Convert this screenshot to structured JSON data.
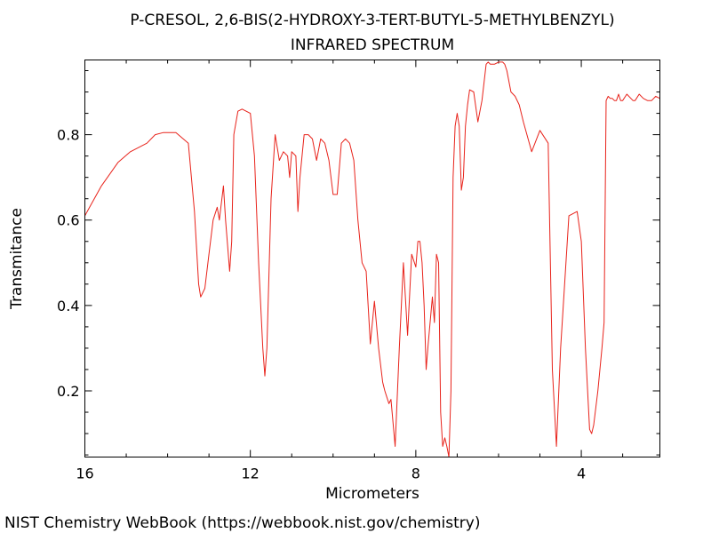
{
  "chart_data": {
    "type": "line",
    "title": "P-CRESOL, 2,6-BIS(2-HYDROXY-3-TERT-BUTYL-5-METHYLBENZYL)",
    "subtitle": "INFRARED SPECTRUM",
    "xlabel": "Micrometers",
    "ylabel": "Transmitance",
    "xlim": [
      16,
      2.1
    ],
    "x_reversed": true,
    "ylim": [
      0.045,
      0.975
    ],
    "xticks": [
      16,
      12,
      8,
      4
    ],
    "xtick_labels": [
      "16",
      "12",
      "8",
      "4"
    ],
    "yticks": [
      0.2,
      0.4,
      0.6,
      0.8
    ],
    "ytick_labels": [
      "0.2",
      "0.4",
      "0.6",
      "0.8"
    ],
    "grid": false,
    "line_color": "#e8231b",
    "series": [
      {
        "x": [
          16.0,
          15.6,
          15.2,
          14.9,
          14.5,
          14.3,
          14.1,
          13.8,
          13.5,
          13.35,
          13.25,
          13.2,
          13.1,
          13.0,
          12.9,
          12.8,
          12.75,
          12.65,
          12.6,
          12.5,
          12.45,
          12.4,
          12.3,
          12.2,
          12.0,
          11.9,
          11.8,
          11.7,
          11.65,
          11.6,
          11.5,
          11.4,
          11.3,
          11.2,
          11.1,
          11.05,
          11.0,
          10.9,
          10.85,
          10.8,
          10.7,
          10.6,
          10.5,
          10.4,
          10.3,
          10.2,
          10.1,
          10.0,
          9.9,
          9.8,
          9.7,
          9.6,
          9.5,
          9.4,
          9.3,
          9.2,
          9.1,
          9.0,
          8.9,
          8.8,
          8.75,
          8.7,
          8.65,
          8.6,
          8.5,
          8.4,
          8.3,
          8.2,
          8.1,
          8.0,
          7.95,
          7.9,
          7.85,
          7.8,
          7.75,
          7.7,
          7.6,
          7.55,
          7.5,
          7.45,
          7.4,
          7.35,
          7.3,
          7.25,
          7.2,
          7.15,
          7.1,
          7.05,
          7.0,
          6.95,
          6.9,
          6.85,
          6.8,
          6.75,
          6.7,
          6.6,
          6.5,
          6.4,
          6.3,
          6.25,
          6.2,
          6.1,
          6.0,
          5.9,
          5.85,
          5.8,
          5.7,
          5.6,
          5.5,
          5.4,
          5.2,
          5.0,
          4.8,
          4.7,
          4.6,
          4.5,
          4.3,
          4.1,
          4.0,
          3.9,
          3.8,
          3.75,
          3.7,
          3.6,
          3.5,
          3.45,
          3.4,
          3.35,
          3.3,
          3.25,
          3.2,
          3.15,
          3.1,
          3.05,
          3.0,
          2.9,
          2.8,
          2.75,
          2.7,
          2.6,
          2.5,
          2.4,
          2.3,
          2.2,
          2.1
        ],
        "y": [
          0.61,
          0.68,
          0.735,
          0.76,
          0.78,
          0.8,
          0.805,
          0.805,
          0.78,
          0.62,
          0.45,
          0.42,
          0.44,
          0.52,
          0.6,
          0.63,
          0.6,
          0.68,
          0.6,
          0.48,
          0.55,
          0.8,
          0.855,
          0.86,
          0.85,
          0.75,
          0.5,
          0.3,
          0.235,
          0.3,
          0.65,
          0.8,
          0.74,
          0.76,
          0.75,
          0.7,
          0.76,
          0.75,
          0.62,
          0.7,
          0.8,
          0.8,
          0.79,
          0.74,
          0.79,
          0.78,
          0.74,
          0.66,
          0.66,
          0.78,
          0.79,
          0.78,
          0.74,
          0.6,
          0.5,
          0.48,
          0.31,
          0.41,
          0.3,
          0.22,
          0.2,
          0.185,
          0.17,
          0.18,
          0.07,
          0.3,
          0.5,
          0.33,
          0.52,
          0.49,
          0.55,
          0.55,
          0.5,
          0.4,
          0.25,
          0.31,
          0.42,
          0.36,
          0.52,
          0.5,
          0.15,
          0.07,
          0.09,
          0.07,
          0.045,
          0.2,
          0.7,
          0.82,
          0.85,
          0.82,
          0.67,
          0.7,
          0.82,
          0.87,
          0.905,
          0.9,
          0.83,
          0.88,
          0.965,
          0.97,
          0.965,
          0.965,
          0.97,
          0.97,
          0.965,
          0.95,
          0.9,
          0.89,
          0.87,
          0.83,
          0.76,
          0.81,
          0.78,
          0.25,
          0.07,
          0.3,
          0.61,
          0.62,
          0.55,
          0.3,
          0.11,
          0.1,
          0.12,
          0.2,
          0.3,
          0.36,
          0.88,
          0.89,
          0.885,
          0.885,
          0.88,
          0.88,
          0.895,
          0.88,
          0.88,
          0.895,
          0.885,
          0.88,
          0.88,
          0.895,
          0.885,
          0.88,
          0.88,
          0.89,
          0.885
        ]
      }
    ]
  },
  "footer": "NIST Chemistry WebBook (https://webbook.nist.gov/chemistry)"
}
